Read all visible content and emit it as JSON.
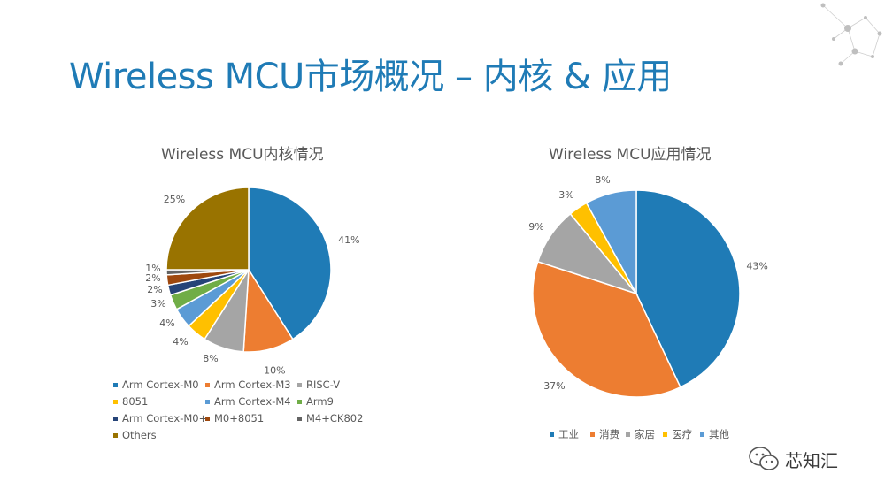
{
  "slide": {
    "title": "Wireless MCU市场概况 – 内核 & 应用"
  },
  "watermark": {
    "text": "芯知汇",
    "icon": "wechat-icon"
  },
  "chart_data": [
    {
      "type": "pie",
      "title": "Wireless MCU内核情况",
      "legend_position": "bottom",
      "slices": [
        {
          "name": "Arm Cortex-M0",
          "value": 41,
          "label": "41%",
          "color": "#1f7bb6"
        },
        {
          "name": "Arm Cortex-M3",
          "value": 10,
          "label": "10%",
          "color": "#ed7d31"
        },
        {
          "name": "RISC-V",
          "value": 8,
          "label": "8%",
          "color": "#a5a5a5"
        },
        {
          "name": "8051",
          "value": 4,
          "label": "4%",
          "color": "#ffc000"
        },
        {
          "name": "Arm Cortex-M4",
          "value": 4,
          "label": "4%",
          "color": "#5b9bd5"
        },
        {
          "name": "Arm9",
          "value": 3,
          "label": "3%",
          "color": "#70ad47"
        },
        {
          "name": "Arm Cortex-M0+",
          "value": 2,
          "label": "2%",
          "color": "#264478"
        },
        {
          "name": "M0+8051",
          "value": 2,
          "label": "2%",
          "color": "#9e480e"
        },
        {
          "name": "M4+CK802",
          "value": 1,
          "label": "1%",
          "color": "#636363"
        },
        {
          "name": "Others",
          "value": 25,
          "label": "25%",
          "color": "#997300"
        }
      ]
    },
    {
      "type": "pie",
      "title": "Wireless MCU应用情况",
      "legend_position": "bottom",
      "slices": [
        {
          "name": "工业",
          "value": 43,
          "label": "43%",
          "color": "#1f7bb6"
        },
        {
          "name": "消费",
          "value": 37,
          "label": "37%",
          "color": "#ed7d31"
        },
        {
          "name": "家居",
          "value": 9,
          "label": "9%",
          "color": "#a5a5a5"
        },
        {
          "name": "医疗",
          "value": 3,
          "label": "3%",
          "color": "#ffc000"
        },
        {
          "name": "其他",
          "value": 8,
          "label": "8%",
          "color": "#5b9bd5"
        }
      ]
    }
  ]
}
